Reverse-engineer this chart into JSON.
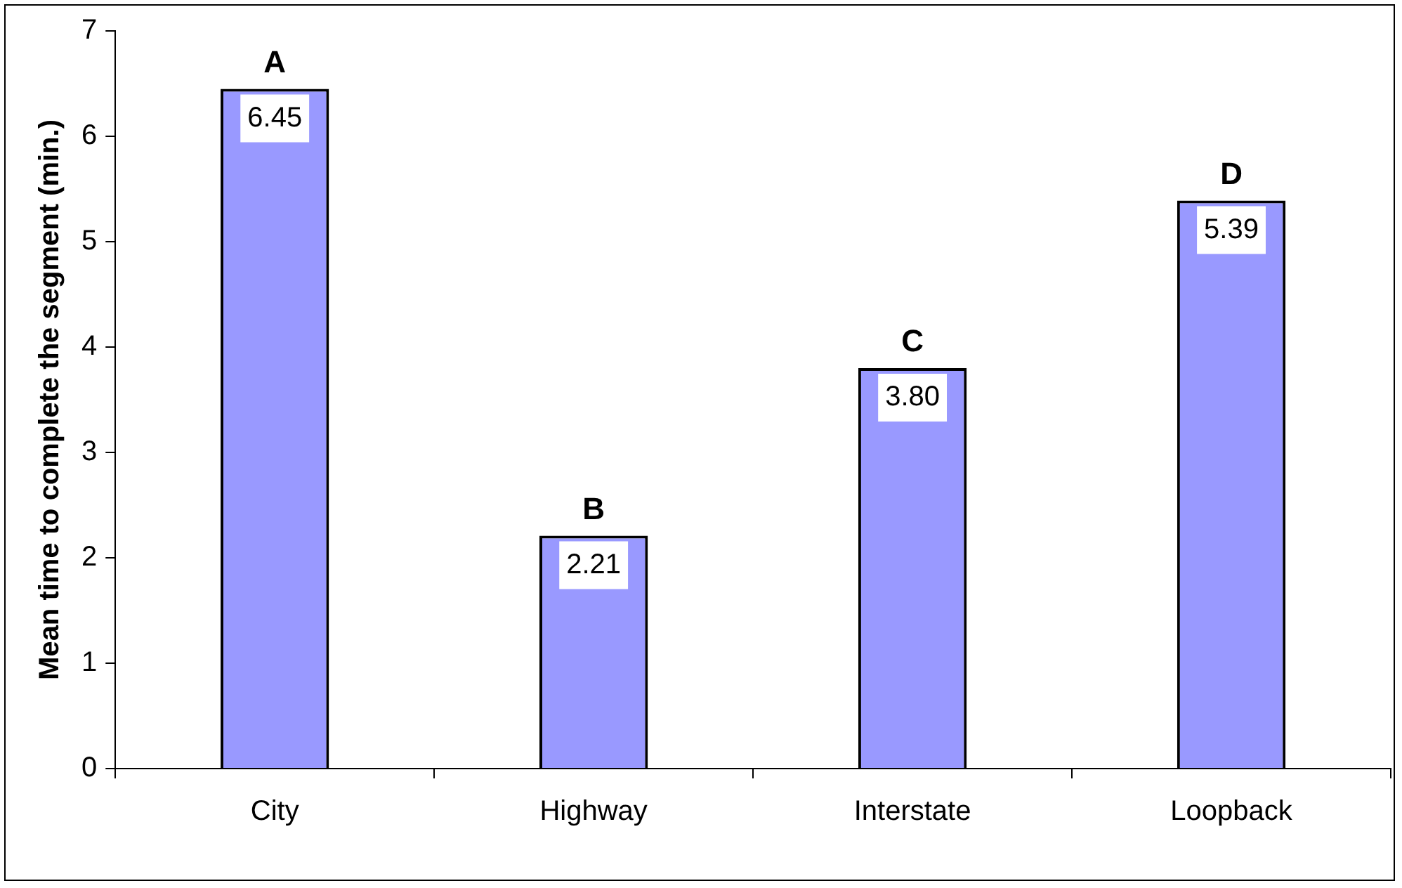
{
  "chart_data": {
    "type": "bar",
    "ylabel": "Mean time to complete the segment (min.)",
    "categories": [
      "City",
      "Highway",
      "Interstate",
      "Loopback"
    ],
    "values": [
      6.45,
      2.21,
      3.8,
      5.39
    ],
    "value_labels": [
      "6.45",
      "2.21",
      "3.80",
      "5.39"
    ],
    "color": "#9999ff",
    "ylim": [
      0,
      7
    ],
    "yticks": [
      0,
      1,
      2,
      3,
      4,
      5,
      6,
      7
    ],
    "grid": false,
    "legend": false,
    "annotations": [
      {
        "text": "A",
        "x": "City",
        "y": 6.45
      },
      {
        "text": "B",
        "x": "Highway",
        "y": 2.21
      },
      {
        "text": "C",
        "x": "Interstate",
        "y": 3.8
      },
      {
        "text": "D",
        "x": "Loopback",
        "y": 5.39
      }
    ]
  }
}
